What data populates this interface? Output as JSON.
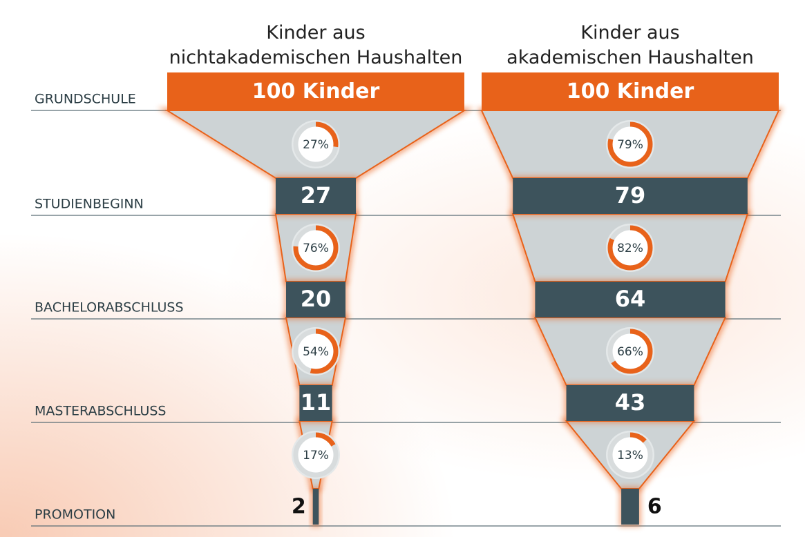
{
  "chart_data": {
    "type": "funnel",
    "categories": [
      "GRUNDSCHULE",
      "STUDIENBEGINN",
      "BACHELORABSCHLUSS",
      "MASTERABSCHLUSS",
      "PROMOTION"
    ],
    "top_color": "#e8621a",
    "accent_color": "#e8621a",
    "series": [
      {
        "name": "Kinder aus\nnichtakademischen Haushalten",
        "color": "#3d535c",
        "values": [
          100,
          27,
          20,
          11,
          2
        ],
        "value_labels": [
          "100 Kinder",
          "27",
          "20",
          "11",
          "2"
        ],
        "rates": [
          27,
          76,
          54,
          17
        ],
        "rate_labels": [
          "27%",
          "76%",
          "54%",
          "17%"
        ]
      },
      {
        "name": "Kinder aus\nakademischen Haushalten",
        "color": "#3d535c",
        "values": [
          100,
          79,
          64,
          43,
          6
        ],
        "value_labels": [
          "100 Kinder",
          "79",
          "64",
          "43",
          "6"
        ],
        "rates": [
          79,
          82,
          66,
          13
        ],
        "rate_labels": [
          "79%",
          "82%",
          "66%",
          "13%"
        ]
      }
    ]
  }
}
